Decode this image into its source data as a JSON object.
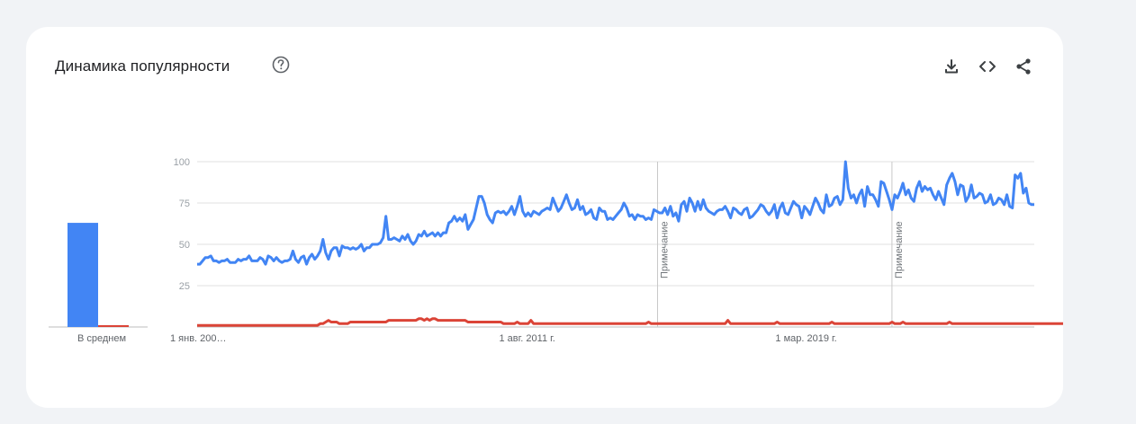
{
  "header": {
    "title": "Динамика популярности",
    "help_icon": "help-circle-icon",
    "tools": [
      "download-icon",
      "embed-code-icon",
      "share-icon"
    ]
  },
  "colors": {
    "series_blue": "#4285f4",
    "series_red": "#db4437",
    "grid": "#e0e0e0"
  },
  "chart_data": [
    {
      "type": "bar",
      "categories": [
        "В среднем"
      ],
      "series": [
        {
          "values": [
            63
          ]
        },
        {
          "values": [
            1
          ]
        }
      ],
      "ylim": [
        0,
        100
      ]
    },
    {
      "type": "line",
      "ylim": [
        0,
        100
      ],
      "yticks": [
        25,
        50,
        75,
        100
      ],
      "x_tick_labels": [
        "1 янв. 200…",
        "1 авг. 2011 г.",
        "1 мар. 2019 г."
      ],
      "annotations": [
        "Примечание",
        "Примечание"
      ],
      "grid": true,
      "series": [
        {
          "values": [
            38,
            38,
            40,
            42,
            42,
            43,
            40,
            40,
            39,
            40,
            40,
            41,
            39,
            39,
            39,
            41,
            40,
            41,
            41,
            43,
            40,
            40,
            40,
            42,
            41,
            38,
            43,
            42,
            40,
            42,
            40,
            39,
            40,
            40,
            41,
            46,
            41,
            39,
            42,
            43,
            38,
            42,
            44,
            41,
            43,
            46,
            53,
            45,
            41,
            46,
            48,
            48,
            43,
            49,
            48,
            48,
            47,
            48,
            47,
            48,
            50,
            46,
            48,
            48,
            50,
            50,
            50,
            51,
            54,
            67,
            53,
            53,
            54,
            53,
            52,
            55,
            53,
            56,
            52,
            50,
            52,
            56,
            55,
            58,
            55,
            56,
            57,
            55,
            57,
            55,
            57,
            57,
            63,
            64,
            67,
            64,
            66,
            64,
            68,
            59,
            62,
            65,
            72,
            79,
            79,
            75,
            68,
            65,
            63,
            69,
            70,
            69,
            70,
            68,
            70,
            73,
            68,
            73,
            79,
            70,
            67,
            69,
            67,
            70,
            69,
            68,
            70,
            71,
            72,
            71,
            78,
            74,
            70,
            72,
            76,
            80,
            75,
            71,
            72,
            77,
            71,
            73,
            68,
            69,
            71,
            66,
            65,
            72,
            70,
            70,
            65,
            66,
            65,
            67,
            69,
            71,
            75,
            72,
            67,
            68,
            65,
            68,
            67,
            67,
            65,
            66,
            65,
            71,
            70,
            69,
            69,
            72,
            68,
            73,
            67,
            69,
            64,
            74,
            76,
            70,
            78,
            75,
            70,
            76,
            71,
            77,
            72,
            70,
            69,
            68,
            70,
            71,
            71,
            73,
            70,
            66,
            72,
            71,
            69,
            68,
            71,
            72,
            66,
            67,
            69,
            71,
            74,
            73,
            70,
            68,
            70,
            74,
            66,
            72,
            75,
            69,
            68,
            72,
            76,
            74,
            73,
            66,
            73,
            71,
            68,
            73,
            78,
            75,
            71,
            69,
            80,
            73,
            74,
            78,
            79,
            74,
            77,
            100,
            84,
            78,
            80,
            75,
            80,
            83,
            73,
            85,
            80,
            80,
            77,
            73,
            88,
            87,
            82,
            77,
            71,
            80,
            78,
            82,
            87,
            80,
            83,
            78,
            76,
            84,
            88,
            82,
            85,
            83,
            84,
            80,
            77,
            82,
            78,
            74,
            86,
            90,
            93,
            88,
            80,
            86,
            85,
            76,
            79,
            86,
            78,
            79,
            81,
            80,
            75,
            76,
            80,
            74,
            75,
            78,
            77,
            74,
            80,
            73,
            72,
            92,
            90,
            93,
            81,
            84,
            75,
            74,
            74
          ]
        },
        {
          "values": [
            1,
            1,
            1,
            1,
            1,
            1,
            1,
            1,
            1,
            1,
            1,
            1,
            1,
            1,
            1,
            1,
            1,
            1,
            1,
            1,
            1,
            1,
            1,
            1,
            1,
            1,
            1,
            1,
            1,
            1,
            1,
            1,
            1,
            1,
            1,
            1,
            1,
            1,
            1,
            1,
            1,
            1,
            1,
            1,
            1,
            2,
            2,
            3,
            4,
            3,
            3,
            3,
            2,
            2,
            2,
            2,
            3,
            3,
            3,
            3,
            3,
            3,
            3,
            3,
            3,
            3,
            3,
            3,
            3,
            3,
            4,
            4,
            4,
            4,
            4,
            4,
            4,
            4,
            4,
            4,
            4,
            5,
            5,
            4,
            5,
            4,
            5,
            5,
            4,
            4,
            4,
            4,
            4,
            4,
            4,
            4,
            4,
            4,
            4,
            3,
            3,
            3,
            3,
            3,
            3,
            3,
            3,
            3,
            3,
            3,
            3,
            3,
            2,
            2,
            2,
            2,
            2,
            3,
            2,
            2,
            2,
            2,
            4,
            2,
            2,
            2,
            2,
            2,
            2,
            2,
            2,
            2,
            2,
            2,
            2,
            2,
            2,
            2,
            2,
            2,
            2,
            2,
            2,
            2,
            2,
            2,
            2,
            2,
            2,
            2,
            2,
            2,
            2,
            2,
            2,
            2,
            2,
            2,
            2,
            2,
            2,
            2,
            2,
            2,
            2,
            3,
            2,
            2,
            2,
            2,
            2,
            2,
            2,
            2,
            2,
            2,
            2,
            2,
            2,
            2,
            2,
            2,
            2,
            2,
            2,
            2,
            2,
            2,
            2,
            2,
            2,
            2,
            2,
            2,
            4,
            2,
            2,
            2,
            2,
            2,
            2,
            2,
            2,
            2,
            2,
            2,
            2,
            2,
            2,
            2,
            2,
            2,
            3,
            2,
            2,
            2,
            2,
            2,
            2,
            2,
            2,
            2,
            2,
            2,
            2,
            2,
            2,
            2,
            2,
            2,
            2,
            2,
            3,
            2,
            2,
            2,
            2,
            2,
            2,
            2,
            2,
            2,
            2,
            2,
            2,
            2,
            2,
            2,
            2,
            2,
            2,
            2,
            2,
            2,
            3,
            2,
            2,
            2,
            3,
            2,
            2,
            2,
            2,
            2,
            2,
            2,
            2,
            2,
            2,
            2,
            2,
            2,
            2,
            2,
            2,
            3,
            2,
            2,
            2,
            2,
            2,
            2,
            2,
            2,
            2,
            2,
            2,
            2,
            2,
            2,
            2,
            2,
            2,
            2,
            2,
            2,
            2,
            2,
            2,
            2,
            2,
            2,
            2,
            2,
            2,
            2,
            2,
            2,
            2,
            2,
            2,
            2,
            2,
            2,
            2,
            2,
            2,
            2,
            2,
            2,
            3,
            1,
            3,
            1,
            2,
            2,
            1,
            4,
            2,
            1,
            3,
            3,
            1,
            2,
            2,
            1,
            2,
            2,
            3,
            2,
            1,
            3,
            1,
            2,
            2
          ]
        }
      ]
    }
  ]
}
